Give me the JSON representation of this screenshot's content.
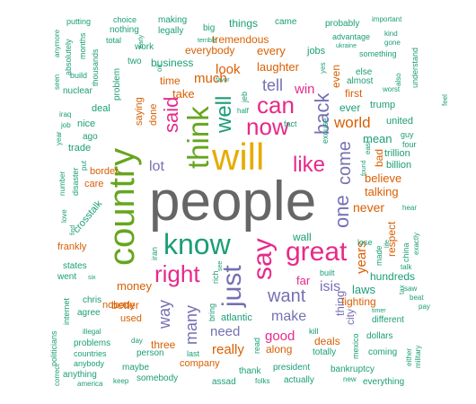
{
  "palette": {
    "green": "#1b9e77",
    "orange": "#d95f02",
    "purple": "#7570b3",
    "pink": "#e7298a",
    "olive": "#66a61e",
    "gold": "#e6ab02",
    "gray": "#666666"
  },
  "words": [
    {
      "text": "people",
      "weight": 62,
      "color": "gray"
    },
    {
      "text": "country",
      "weight": 40,
      "color": "olive"
    },
    {
      "text": "will",
      "weight": 42,
      "color": "gold"
    },
    {
      "text": "think",
      "weight": 33,
      "color": "olive"
    },
    {
      "text": "know",
      "weight": 32,
      "color": "green"
    },
    {
      "text": "great",
      "weight": 30,
      "color": "pink"
    },
    {
      "text": "just",
      "weight": 30,
      "color": "purple"
    },
    {
      "text": "say",
      "weight": 30,
      "color": "pink"
    },
    {
      "text": "right",
      "weight": 26,
      "color": "pink"
    },
    {
      "text": "can",
      "weight": 26,
      "color": "pink"
    },
    {
      "text": "now",
      "weight": 26,
      "color": "pink"
    },
    {
      "text": "like",
      "weight": 24,
      "color": "pink"
    },
    {
      "text": "well",
      "weight": 24,
      "color": "green"
    },
    {
      "text": "said",
      "weight": 22,
      "color": "pink"
    },
    {
      "text": "back",
      "weight": 22,
      "color": "purple"
    },
    {
      "text": "one",
      "weight": 22,
      "color": "purple"
    },
    {
      "text": "come",
      "weight": 20,
      "color": "purple"
    },
    {
      "text": "want",
      "weight": 20,
      "color": "purple"
    },
    {
      "text": "many",
      "weight": 18,
      "color": "purple"
    },
    {
      "text": "way",
      "weight": 18,
      "color": "purple"
    },
    {
      "text": "tell",
      "weight": 18,
      "color": "purple"
    },
    {
      "text": "world",
      "weight": 17,
      "color": "orange"
    },
    {
      "text": "make",
      "weight": 16,
      "color": "purple"
    },
    {
      "text": "isis",
      "weight": 16,
      "color": "purple"
    },
    {
      "text": "lot",
      "weight": 16,
      "color": "purple"
    },
    {
      "text": "good",
      "weight": 15,
      "color": "pink"
    },
    {
      "text": "need",
      "weight": 15,
      "color": "purple"
    },
    {
      "text": "look",
      "weight": 15,
      "color": "orange"
    },
    {
      "text": "much",
      "weight": 15,
      "color": "orange"
    },
    {
      "text": "win",
      "weight": 15,
      "color": "pink"
    },
    {
      "text": "years",
      "weight": 15,
      "color": "orange"
    },
    {
      "text": "really",
      "weight": 15,
      "color": "orange"
    },
    {
      "text": "never",
      "weight": 14,
      "color": "orange"
    },
    {
      "text": "believe",
      "weight": 13,
      "color": "orange"
    },
    {
      "text": "talking",
      "weight": 13,
      "color": "orange"
    },
    {
      "text": "laughter",
      "weight": 13,
      "color": "orange"
    },
    {
      "text": "take",
      "weight": 13,
      "color": "orange"
    },
    {
      "text": "every",
      "weight": 13,
      "color": "orange"
    },
    {
      "text": "far",
      "weight": 13,
      "color": "pink"
    },
    {
      "text": "money",
      "weight": 13,
      "color": "orange"
    },
    {
      "text": "mean",
      "weight": 13,
      "color": "green"
    },
    {
      "text": "laws",
      "weight": 13,
      "color": "green"
    },
    {
      "text": "thing",
      "weight": 13,
      "color": "purple"
    },
    {
      "text": "wall",
      "weight": 12,
      "color": "green"
    },
    {
      "text": "ever",
      "weight": 12,
      "color": "green"
    },
    {
      "text": "first",
      "weight": 12,
      "color": "orange"
    },
    {
      "text": "along",
      "weight": 12,
      "color": "orange"
    },
    {
      "text": "three",
      "weight": 12,
      "color": "orange"
    },
    {
      "text": "better",
      "weight": 12,
      "color": "orange"
    },
    {
      "text": "deals",
      "weight": 12,
      "color": "orange"
    },
    {
      "text": "fighting",
      "weight": 12,
      "color": "orange"
    },
    {
      "text": "respect",
      "weight": 12,
      "color": "orange"
    },
    {
      "text": "even",
      "weight": 12,
      "color": "orange"
    },
    {
      "text": "bad",
      "weight": 12,
      "color": "orange"
    },
    {
      "text": "hundreds",
      "weight": 12,
      "color": "green"
    },
    {
      "text": "tremendous",
      "weight": 12,
      "color": "orange"
    },
    {
      "text": "everybody",
      "weight": 12,
      "color": "orange"
    },
    {
      "text": "business",
      "weight": 12,
      "color": "green"
    },
    {
      "text": "time",
      "weight": 12,
      "color": "orange"
    },
    {
      "text": "things",
      "weight": 12,
      "color": "green"
    },
    {
      "text": "saying",
      "weight": 11,
      "color": "orange"
    },
    {
      "text": "trump",
      "weight": 11,
      "color": "green"
    },
    {
      "text": "trillion",
      "weight": 11,
      "color": "green"
    },
    {
      "text": "billion",
      "weight": 11,
      "color": "green"
    },
    {
      "text": "united",
      "weight": 11,
      "color": "green"
    },
    {
      "text": "company",
      "weight": 11,
      "color": "orange"
    },
    {
      "text": "atlantic",
      "weight": 11,
      "color": "green"
    },
    {
      "text": "used",
      "weight": 11,
      "color": "orange"
    },
    {
      "text": "nobody",
      "weight": 11,
      "color": "orange"
    },
    {
      "text": "jobs",
      "weight": 11,
      "color": "green"
    },
    {
      "text": "border",
      "weight": 11,
      "color": "orange"
    },
    {
      "text": "care",
      "weight": 11,
      "color": "orange"
    },
    {
      "text": "deal",
      "weight": 11,
      "color": "green"
    },
    {
      "text": "nice",
      "weight": 11,
      "color": "green"
    },
    {
      "text": "trade",
      "weight": 11,
      "color": "green"
    },
    {
      "text": "frankly",
      "weight": 11,
      "color": "orange"
    },
    {
      "text": "crosstalk",
      "weight": 11,
      "color": "green"
    },
    {
      "text": "states",
      "weight": 10,
      "color": "green"
    },
    {
      "text": "went",
      "weight": 10,
      "color": "green"
    },
    {
      "text": "chris",
      "weight": 10,
      "color": "green"
    },
    {
      "text": "agree",
      "weight": 10,
      "color": "green"
    },
    {
      "text": "problems",
      "weight": 10,
      "color": "green"
    },
    {
      "text": "countries",
      "weight": 9,
      "color": "green"
    },
    {
      "text": "anybody",
      "weight": 9,
      "color": "green"
    },
    {
      "text": "anything",
      "weight": 10,
      "color": "green"
    },
    {
      "text": "maybe",
      "weight": 10,
      "color": "green"
    },
    {
      "text": "person",
      "weight": 10,
      "color": "green"
    },
    {
      "text": "somebody",
      "weight": 10,
      "color": "green"
    },
    {
      "text": "assad",
      "weight": 10,
      "color": "green"
    },
    {
      "text": "thank",
      "weight": 10,
      "color": "green"
    },
    {
      "text": "president",
      "weight": 10,
      "color": "green"
    },
    {
      "text": "actually",
      "weight": 10,
      "color": "green"
    },
    {
      "text": "bankruptcy",
      "weight": 10,
      "color": "green"
    },
    {
      "text": "everything",
      "weight": 10,
      "color": "green"
    },
    {
      "text": "totally",
      "weight": 10,
      "color": "green"
    },
    {
      "text": "coming",
      "weight": 10,
      "color": "green"
    },
    {
      "text": "dollars",
      "weight": 10,
      "color": "green"
    },
    {
      "text": "different",
      "weight": 10,
      "color": "green"
    },
    {
      "text": "built",
      "weight": 9,
      "color": "green"
    },
    {
      "text": "city",
      "weight": 12,
      "color": "purple"
    },
    {
      "text": "made",
      "weight": 9,
      "color": "green"
    },
    {
      "text": "china",
      "weight": 9,
      "color": "green"
    },
    {
      "text": "lose",
      "weight": 9,
      "color": "green"
    },
    {
      "text": "guy",
      "weight": 9,
      "color": "green"
    },
    {
      "text": "four",
      "weight": 9,
      "color": "green"
    },
    {
      "text": "excuse",
      "weight": 9,
      "color": "green"
    },
    {
      "text": "fact",
      "weight": 9,
      "color": "green"
    },
    {
      "text": "else",
      "weight": 10,
      "color": "green"
    },
    {
      "text": "almost",
      "weight": 10,
      "color": "green"
    },
    {
      "text": "probably",
      "weight": 10,
      "color": "green"
    },
    {
      "text": "advantage",
      "weight": 9,
      "color": "green"
    },
    {
      "text": "something",
      "weight": 9,
      "color": "green"
    },
    {
      "text": "came",
      "weight": 10,
      "color": "green"
    },
    {
      "text": "big",
      "weight": 10,
      "color": "green"
    },
    {
      "text": "making",
      "weight": 10,
      "color": "green"
    },
    {
      "text": "legally",
      "weight": 10,
      "color": "green"
    },
    {
      "text": "choice",
      "weight": 9,
      "color": "green"
    },
    {
      "text": "nothing",
      "weight": 10,
      "color": "green"
    },
    {
      "text": "total",
      "weight": 9,
      "color": "green"
    },
    {
      "text": "work",
      "weight": 10,
      "color": "green"
    },
    {
      "text": "putting",
      "weight": 9,
      "color": "green"
    },
    {
      "text": "build",
      "weight": 9,
      "color": "green"
    },
    {
      "text": "nuclear",
      "weight": 10,
      "color": "green"
    },
    {
      "text": "problem",
      "weight": 10,
      "color": "green"
    },
    {
      "text": "ago",
      "weight": 10,
      "color": "green"
    },
    {
      "text": "two",
      "weight": 10,
      "color": "green"
    },
    {
      "text": "done",
      "weight": 11,
      "color": "orange"
    },
    {
      "text": "rich",
      "weight": 9,
      "color": "green"
    },
    {
      "text": "iran",
      "weight": 9,
      "color": "green"
    },
    {
      "text": "read",
      "weight": 9,
      "color": "green"
    },
    {
      "text": "bring",
      "weight": 9,
      "color": "green"
    },
    {
      "text": "last",
      "weight": 9,
      "color": "green"
    },
    {
      "text": "kill",
      "weight": 9,
      "color": "green"
    },
    {
      "text": "mexico",
      "weight": 9,
      "color": "green"
    },
    {
      "text": "internet",
      "weight": 9,
      "color": "green"
    },
    {
      "text": "politicians",
      "weight": 9,
      "color": "green"
    },
    {
      "text": "illegal",
      "weight": 8,
      "color": "green"
    },
    {
      "text": "day",
      "weight": 8,
      "color": "green"
    },
    {
      "text": "keep",
      "weight": 8,
      "color": "green"
    },
    {
      "text": "folks",
      "weight": 8,
      "color": "green"
    },
    {
      "text": "new",
      "weight": 8,
      "color": "green"
    },
    {
      "text": "america",
      "weight": 8,
      "color": "green"
    },
    {
      "text": "correct",
      "weight": 8,
      "color": "green"
    },
    {
      "text": "either",
      "weight": 8,
      "color": "green"
    },
    {
      "text": "military",
      "weight": 8,
      "color": "green"
    },
    {
      "text": "timer",
      "weight": 7,
      "color": "green"
    },
    {
      "text": "pay",
      "weight": 8,
      "color": "green"
    },
    {
      "text": "saw",
      "weight": 8,
      "color": "green"
    },
    {
      "text": "beat",
      "weight": 8,
      "color": "green"
    },
    {
      "text": "talk",
      "weight": 8,
      "color": "green"
    },
    {
      "text": "tax",
      "weight": 8,
      "color": "green"
    },
    {
      "text": "exactly",
      "weight": 8,
      "color": "green"
    },
    {
      "text": "hear",
      "weight": 8,
      "color": "green"
    },
    {
      "text": "life",
      "weight": 7,
      "color": "green"
    },
    {
      "text": "found",
      "weight": 7,
      "color": "green"
    },
    {
      "text": "east",
      "weight": 8,
      "color": "green"
    },
    {
      "text": "worst",
      "weight": 8,
      "color": "green"
    },
    {
      "text": "also",
      "weight": 8,
      "color": "green"
    },
    {
      "text": "feel",
      "weight": 8,
      "color": "green"
    },
    {
      "text": "understand",
      "weight": 9,
      "color": "green"
    },
    {
      "text": "kind",
      "weight": 8,
      "color": "green"
    },
    {
      "text": "gone",
      "weight": 8,
      "color": "green"
    },
    {
      "text": "important",
      "weight": 8,
      "color": "green"
    },
    {
      "text": "ukraine",
      "weight": 7,
      "color": "green"
    },
    {
      "text": "yes",
      "weight": 8,
      "color": "green"
    },
    {
      "text": "terrible",
      "weight": 7,
      "color": "green"
    },
    {
      "text": "oil",
      "weight": 8,
      "color": "green"
    },
    {
      "text": "favor",
      "weight": 7,
      "color": "green"
    },
    {
      "text": "half",
      "weight": 8,
      "color": "green"
    },
    {
      "text": "job",
      "weight": 8,
      "color": "green"
    },
    {
      "text": "iraq",
      "weight": 8,
      "color": "green"
    },
    {
      "text": "number",
      "weight": 8,
      "color": "green"
    },
    {
      "text": "disaster",
      "weight": 9,
      "color": "green"
    },
    {
      "text": "put",
      "weight": 8,
      "color": "green"
    },
    {
      "text": "year",
      "weight": 8,
      "color": "green"
    },
    {
      "text": "love",
      "weight": 8,
      "color": "green"
    },
    {
      "text": "find",
      "weight": 7,
      "color": "green"
    },
    {
      "text": "six",
      "weight": 7,
      "color": "green"
    },
    {
      "text": "see",
      "weight": 7,
      "color": "green"
    },
    {
      "text": "early",
      "weight": 7,
      "color": "green"
    },
    {
      "text": "seen",
      "weight": 8,
      "color": "green"
    },
    {
      "text": "anymore",
      "weight": 8,
      "color": "green"
    },
    {
      "text": "absolutely",
      "weight": 9,
      "color": "green"
    },
    {
      "text": "months",
      "weight": 9,
      "color": "green"
    },
    {
      "text": "thousands",
      "weight": 9,
      "color": "green"
    },
    {
      "text": "jeb",
      "weight": 9,
      "color": "green"
    }
  ]
}
